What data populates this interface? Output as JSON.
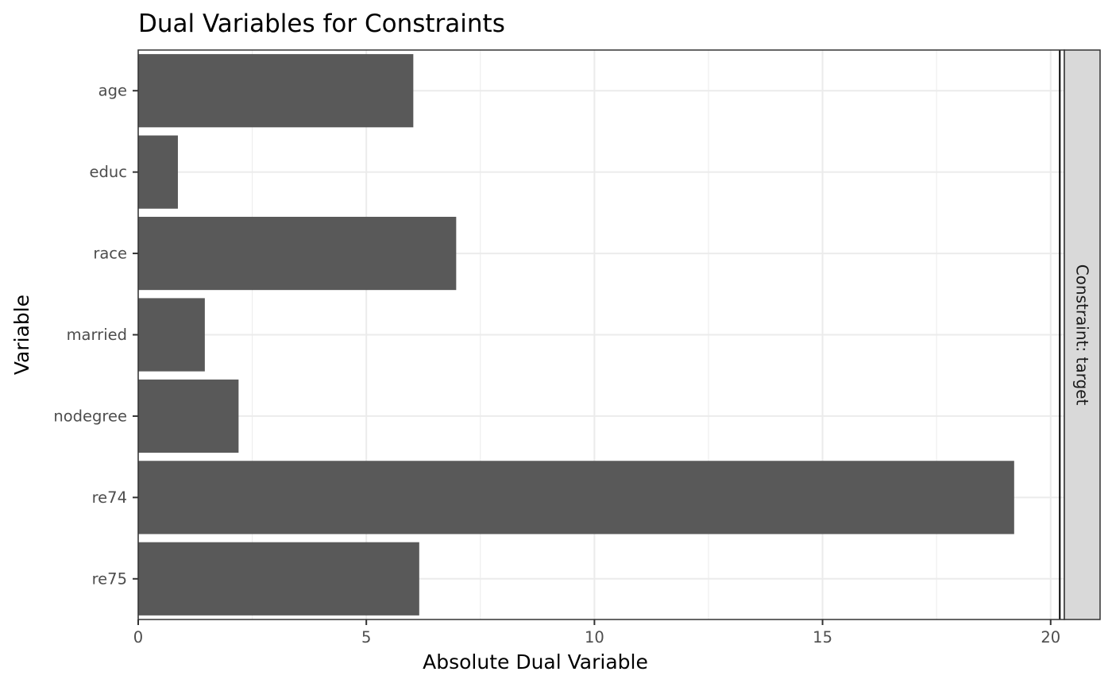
{
  "chart_data": {
    "type": "bar",
    "orientation": "horizontal",
    "title": "Dual Variables for Constraints",
    "xlabel": "Absolute Dual Variable",
    "ylabel": "Variable",
    "categories": [
      "age",
      "educ",
      "race",
      "married",
      "nodegree",
      "re74",
      "re75"
    ],
    "values": [
      6.03,
      0.87,
      6.97,
      1.46,
      2.2,
      19.2,
      6.16
    ],
    "xlim": [
      0,
      20.3
    ],
    "xticks": [
      0,
      5,
      10,
      15,
      20
    ],
    "xtick_labels": [
      "0",
      "5",
      "10",
      "15",
      "20"
    ],
    "facet_label": "Constraint: target",
    "vline": 20.2,
    "grid": true,
    "legend": "none",
    "colors": {
      "bar": "#595959",
      "grid": "#ebebeb",
      "panel_border": "#333333",
      "strip_fill": "#d9d9d9",
      "vline": "#000000"
    }
  }
}
